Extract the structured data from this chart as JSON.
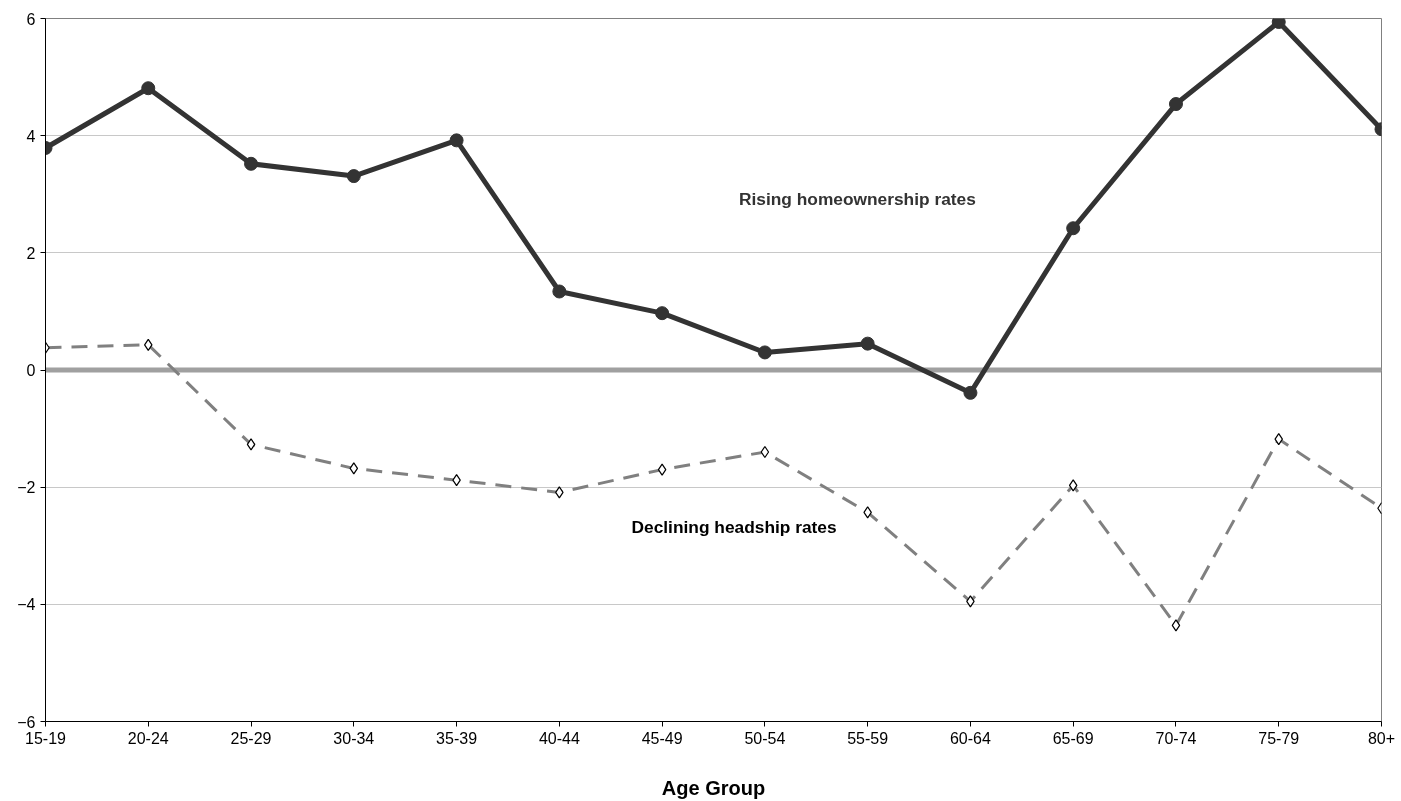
{
  "chart_data": {
    "type": "line",
    "xlabel": "Age Group",
    "categories": [
      "15-19",
      "20-24",
      "25-29",
      "30-34",
      "35-39",
      "40-44",
      "45-49",
      "50-54",
      "55-59",
      "60-64",
      "65-69",
      "70-74",
      "75-79",
      "80+"
    ],
    "series": [
      {
        "name": "Rising homeownership rates",
        "color": "#333333",
        "marker": "circle",
        "line_style": "solid",
        "values": [
          3.79,
          4.81,
          3.52,
          3.31,
          3.92,
          1.34,
          0.97,
          0.3,
          0.45,
          -0.39,
          2.42,
          4.54,
          5.94,
          4.11
        ]
      },
      {
        "name": "Declining headship rates",
        "color": "#808080",
        "marker": "diamond",
        "line_style": "dashed",
        "values": [
          0.38,
          0.43,
          -1.27,
          -1.68,
          -1.88,
          -2.09,
          -1.7,
          -1.4,
          -2.43,
          -3.95,
          -1.97,
          -4.36,
          -1.18,
          -2.36
        ]
      }
    ],
    "ylim": [
      -6,
      6
    ],
    "yticks": [
      -6,
      -4,
      -2,
      0,
      2,
      4,
      6
    ],
    "grid": "y",
    "ref_lines": [
      {
        "axis": "y",
        "value": 0,
        "color": "#a0a0a0"
      }
    ]
  }
}
